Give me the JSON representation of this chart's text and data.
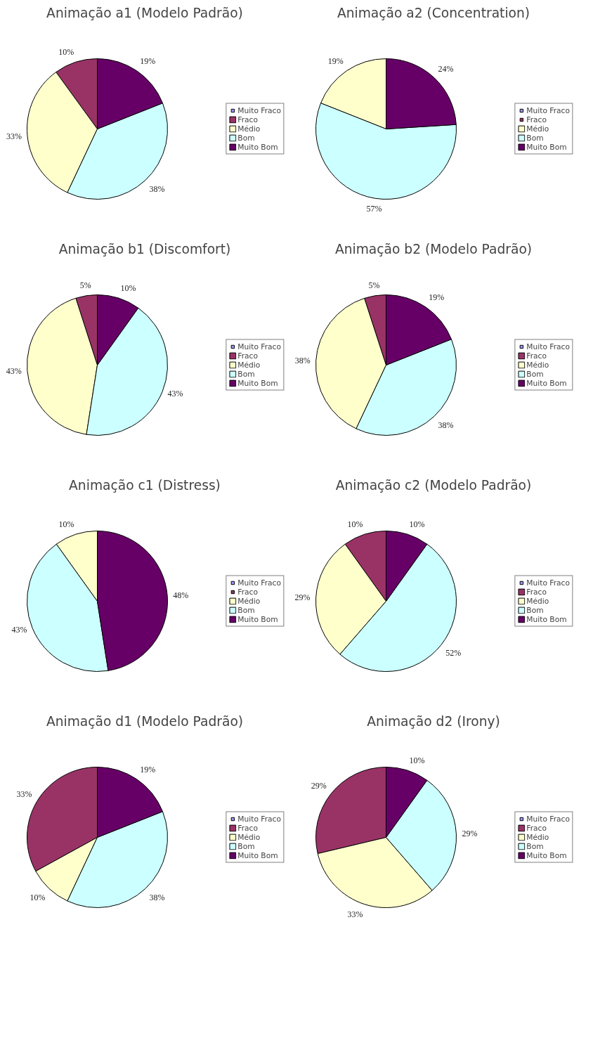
{
  "chart_data": [
    {
      "type": "pie",
      "title": "Animação a1 (Modelo Padrão)",
      "categories": [
        "Muito Fraco",
        "Fraco",
        "Médio",
        "Bom",
        "Muito Bom"
      ],
      "values": [
        0,
        10,
        33,
        38,
        19
      ],
      "value_labels": [
        null,
        "10%",
        "33%",
        "38%",
        "19%"
      ],
      "colors": [
        "#9999ff",
        "#993366",
        "#ffffcc",
        "#ccffff",
        "#660066"
      ],
      "legend": "right"
    },
    {
      "type": "pie",
      "title": "Animação a2 (Concentration)",
      "categories": [
        "Muito Fraco",
        "Fraco",
        "Médio",
        "Bom",
        "Muito Bom"
      ],
      "values": [
        0,
        0,
        19,
        57,
        24
      ],
      "value_labels": [
        null,
        null,
        "19%",
        "57%",
        "24%"
      ],
      "colors": [
        "#9999ff",
        "#993366",
        "#ffffcc",
        "#ccffff",
        "#660066"
      ],
      "legend": "right"
    },
    {
      "type": "pie",
      "title": "Animação b1 (Discomfort)",
      "categories": [
        "Muito Fraco",
        "Fraco",
        "Médio",
        "Bom",
        "Muito Bom"
      ],
      "values": [
        0,
        5,
        43,
        43,
        10
      ],
      "value_labels": [
        null,
        "5%",
        "43%",
        "43%",
        "10%"
      ],
      "colors": [
        "#9999ff",
        "#993366",
        "#ffffcc",
        "#ccffff",
        "#660066"
      ],
      "legend": "right"
    },
    {
      "type": "pie",
      "title": "Animação b2 (Modelo Padrão)",
      "categories": [
        "Muito Fraco",
        "Fraco",
        "Médio",
        "Bom",
        "Muito Bom"
      ],
      "values": [
        0,
        5,
        38,
        38,
        19
      ],
      "value_labels": [
        null,
        "5%",
        "38%",
        "38%",
        "19%"
      ],
      "colors": [
        "#9999ff",
        "#993366",
        "#ffffcc",
        "#ccffff",
        "#660066"
      ],
      "legend": "right"
    },
    {
      "type": "pie",
      "title": "Animação c1 (Distress)",
      "categories": [
        "Muito Fraco",
        "Fraco",
        "Médio",
        "Bom",
        "Muito Bom"
      ],
      "values": [
        0,
        0,
        10,
        43,
        48
      ],
      "value_labels": [
        null,
        null,
        "10%",
        "43%",
        "48%"
      ],
      "colors": [
        "#9999ff",
        "#993366",
        "#ffffcc",
        "#ccffff",
        "#660066"
      ],
      "legend": "right"
    },
    {
      "type": "pie",
      "title": "Animação c2 (Modelo Padrão)",
      "categories": [
        "Muito Fraco",
        "Fraco",
        "Médio",
        "Bom",
        "Muito Bom"
      ],
      "values": [
        0,
        10,
        29,
        52,
        10
      ],
      "value_labels": [
        null,
        "10%",
        "29%",
        "52%",
        "10%"
      ],
      "colors": [
        "#9999ff",
        "#993366",
        "#ffffcc",
        "#ccffff",
        "#660066"
      ],
      "legend": "right"
    },
    {
      "type": "pie",
      "title": "Animação d1 (Modelo Padrão)",
      "categories": [
        "Muito Fraco",
        "Fraco",
        "Médio",
        "Bom",
        "Muito Bom"
      ],
      "values": [
        0,
        33,
        10,
        38,
        19
      ],
      "value_labels": [
        null,
        "33%",
        "10%",
        "38%",
        "19%"
      ],
      "colors": [
        "#9999ff",
        "#993366",
        "#ffffcc",
        "#ccffff",
        "#660066"
      ],
      "legend": "right"
    },
    {
      "type": "pie",
      "title": "Animação d2 (Irony)",
      "categories": [
        "Muito Fraco",
        "Fraco",
        "Médio",
        "Bom",
        "Muito Bom"
      ],
      "values": [
        0,
        29,
        33,
        29,
        10
      ],
      "value_labels": [
        null,
        "29%",
        "33%",
        "29%",
        "10%"
      ],
      "colors": [
        "#9999ff",
        "#993366",
        "#ffffcc",
        "#ccffff",
        "#660066"
      ],
      "legend": "right"
    }
  ]
}
